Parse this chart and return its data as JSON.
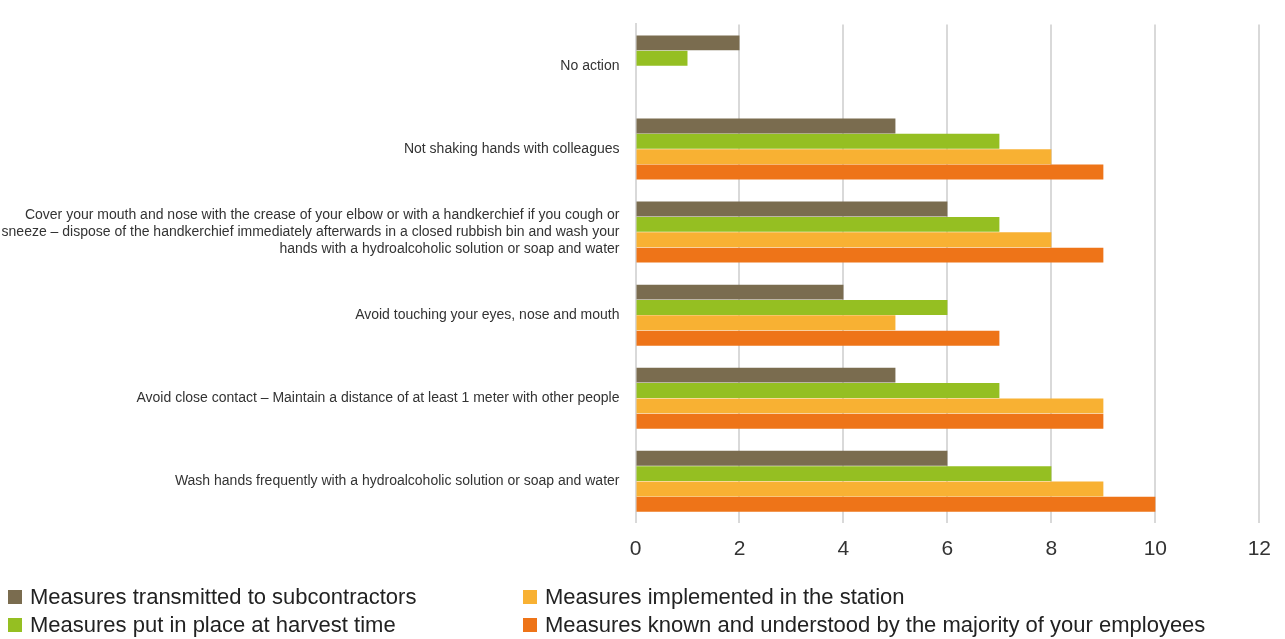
{
  "chart_data": {
    "type": "bar",
    "orientation": "horizontal",
    "categories": [
      "No action",
      "Not shaking hands with colleagues",
      "Cover your mouth and nose with the crease of your elbow or with a handkerchief if you cough or sneeze – dispose of the handkerchief immediately afterwards in a closed rubbish bin and wash your hands with a hydroalcoholic solution or soap and water",
      "Avoid touching your eyes, nose and mouth",
      "Avoid close contact – Maintain a distance of at least 1 meter with other people",
      "Wash hands frequently with a hydroalcoholic solution or soap and water"
    ],
    "series": [
      {
        "name": "Measures transmitted to subcontractors",
        "color": "#7a6c4f",
        "values": [
          2,
          5,
          6,
          4,
          5,
          6
        ]
      },
      {
        "name": "Measures put in place at harvest time",
        "color": "#95bf22",
        "values": [
          1,
          7,
          7,
          6,
          7,
          8
        ]
      },
      {
        "name": "Measures implemented in the station",
        "color": "#f8b133",
        "values": [
          0,
          8,
          8,
          5,
          9,
          9
        ]
      },
      {
        "name": "Measures known and understood by the majority of your employees",
        "color": "#ee7418",
        "values": [
          0,
          9,
          9,
          7,
          9,
          10
        ]
      }
    ],
    "xlim": [
      0,
      12
    ],
    "xticks": [
      0,
      2,
      4,
      6,
      8,
      10,
      12
    ],
    "grid": "x",
    "legend": "bottom"
  }
}
